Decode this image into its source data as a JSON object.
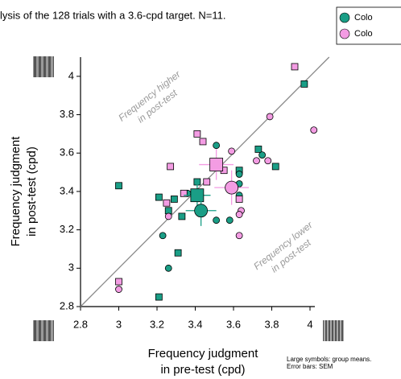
{
  "chart_data": {
    "type": "scatter",
    "title": "lysis of the 128 trials with a 3.6-cpd target. N=11.",
    "xlabel": [
      "Frequency judgment",
      "in pre-test (cpd)"
    ],
    "ylabel": [
      "Frequency judgment",
      "in post-test (cpd)"
    ],
    "xlim": [
      2.8,
      4.1
    ],
    "ylim": [
      2.8,
      4.1
    ],
    "xticks": [
      2.8,
      3,
      3.2,
      3.4,
      3.6,
      3.8,
      4
    ],
    "yticks": [
      2.8,
      3,
      3.2,
      3.4,
      3.6,
      3.8,
      4
    ],
    "diagonal": true,
    "annotations": [
      [
        "Frequency higher",
        "in post-test"
      ],
      [
        "Frequency lower",
        "in post-test"
      ]
    ],
    "note": [
      "Large symbols: group means.",
      "Error bars: SEM"
    ],
    "legend": [
      {
        "label": "Colo",
        "color": "#1a9e86"
      },
      {
        "label": "Colo",
        "color": "#f39ce3"
      }
    ],
    "series": [
      {
        "color": "#1a9e86",
        "marker": "square",
        "x": [
          3.0,
          3.21,
          3.26,
          3.29,
          3.33,
          3.31,
          3.21,
          3.63,
          3.73,
          3.82,
          3.97,
          3.41
        ],
        "y": [
          3.43,
          3.37,
          3.3,
          3.36,
          3.27,
          3.08,
          2.85,
          3.51,
          3.62,
          3.53,
          3.96,
          3.45
        ]
      },
      {
        "color": "#1a9e86",
        "marker": "circle",
        "x": [
          3.23,
          3.26,
          3.51,
          3.51,
          3.58,
          3.63,
          3.63,
          3.63,
          3.75,
          3.36
        ],
        "y": [
          3.17,
          3.0,
          3.64,
          3.25,
          3.25,
          3.49,
          3.44,
          3.38,
          3.59,
          3.39
        ]
      },
      {
        "color": "#f39ce3",
        "marker": "square",
        "x": [
          3.92,
          3.41,
          3.44,
          3.27,
          3.46,
          3.55,
          3.25,
          3.63,
          3.34,
          3.0
        ],
        "y": [
          4.05,
          3.7,
          3.66,
          3.53,
          3.45,
          3.51,
          3.34,
          3.36,
          3.39,
          2.93
        ]
      },
      {
        "color": "#f39ce3",
        "marker": "circle",
        "x": [
          3.79,
          4.02,
          3.59,
          3.72,
          3.78,
          3.26,
          3.64,
          3.63,
          3.63,
          3.0
        ],
        "y": [
          3.79,
          3.72,
          3.61,
          3.56,
          3.56,
          3.27,
          3.3,
          3.28,
          3.17,
          2.89
        ]
      }
    ],
    "means": [
      {
        "color": "#1a9e86",
        "marker": "square",
        "x": 3.41,
        "y": 3.38,
        "xerr": 0.07,
        "yerr": 0.08
      },
      {
        "color": "#1a9e86",
        "marker": "circle",
        "x": 3.43,
        "y": 3.3,
        "xerr": 0.08,
        "yerr": 0.08
      },
      {
        "color": "#f39ce3",
        "marker": "square",
        "x": 3.51,
        "y": 3.54,
        "xerr": 0.09,
        "yerr": 0.08
      },
      {
        "color": "#f39ce3",
        "marker": "circle",
        "x": 3.59,
        "y": 3.42,
        "xerr": 0.09,
        "yerr": 0.09
      }
    ]
  }
}
